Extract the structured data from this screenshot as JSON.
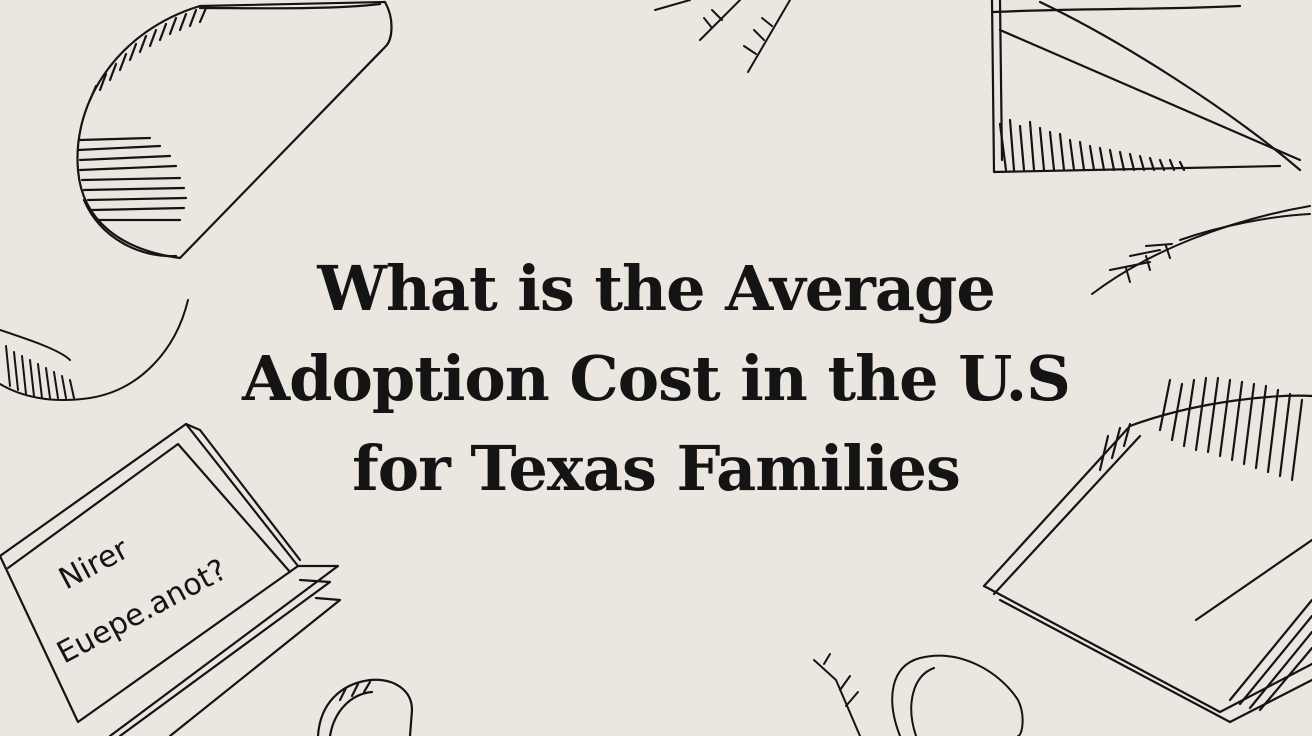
{
  "title": {
    "line1": "What is the Average",
    "line2": "Adoption Cost in the U.S",
    "line3": "for Texas Families"
  },
  "sketch_note": {
    "line1": "Nirer",
    "line2": "Euepe.anot?"
  },
  "colors": {
    "background": "#ebe6e0",
    "ink": "#141414"
  }
}
